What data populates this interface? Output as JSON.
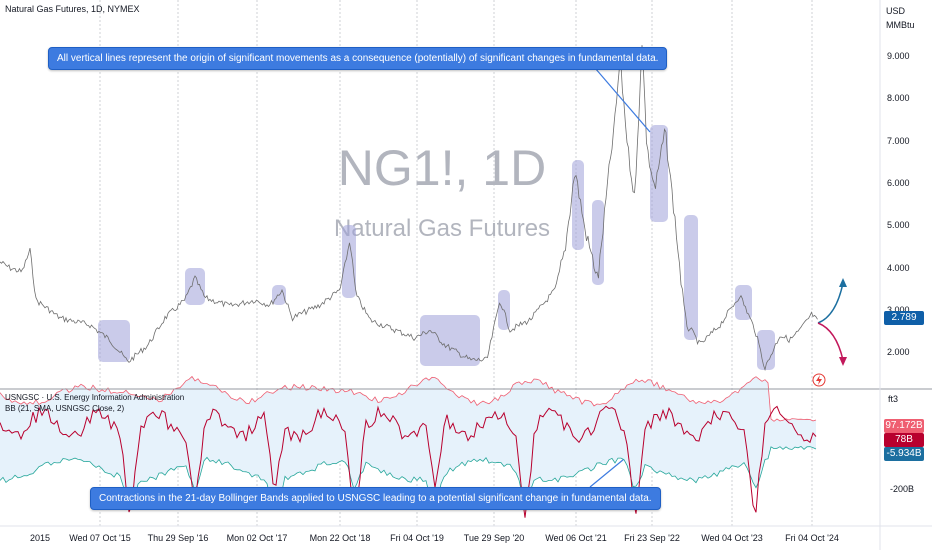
{
  "header": {
    "symbol_title": "Natural Gas Futures, 1D, NYMEX",
    "currency": "USD",
    "unit": "MMBtu"
  },
  "watermark": {
    "ticker": "NG1!, 1D",
    "name": "Natural Gas Futures"
  },
  "main_pane": {
    "price_axis_ticks": [
      "9.000",
      "8.000",
      "7.000",
      "6.000",
      "5.000",
      "4.000",
      "3.000",
      "2.000"
    ],
    "last_price": "2.789",
    "last_price_color": "#0f5fa8",
    "line_color": "#6e6e6e",
    "highlight_color": "#9fa0d8"
  },
  "lower_pane": {
    "indicator_title": "USNGSC · U.S. Energy Information Administration",
    "bb_title": "BB (21, SMA, USNGSC Close, 2)",
    "unit": "ft3",
    "axis_tick": "-200B",
    "value_upper": "97.172B",
    "value_mid": "78B",
    "value_lower": "-5.934B",
    "upper_color": "#ef5e71",
    "basis_color": "#b8002e",
    "lower_color": "#25a69a",
    "fill_color": "#e6f2fb"
  },
  "time_axis": {
    "labels": [
      "2015",
      "Wed 07 Oct '15",
      "Thu 29 Sep '16",
      "Mon 02 Oct '17",
      "Mon 22 Oct '18",
      "Fri 04 Oct '19",
      "Tue 29 Sep '20",
      "Wed 06 Oct '21",
      "Fri 23 Sep '22",
      "Wed 04 Oct '23",
      "Fri 04 Oct '24"
    ]
  },
  "annotations": {
    "top_callout": "All vertical lines represent the origin of significant movements as a consequence (potentially) of significant changes in fundamental data.",
    "bottom_callout": "Contractions in the 21-day Bollinger Bands applied to USNGSC leading to a potential significant change in fundamental data.",
    "up_arrow_color": "#1c6fa0",
    "down_arrow_color": "#c2185b"
  }
}
